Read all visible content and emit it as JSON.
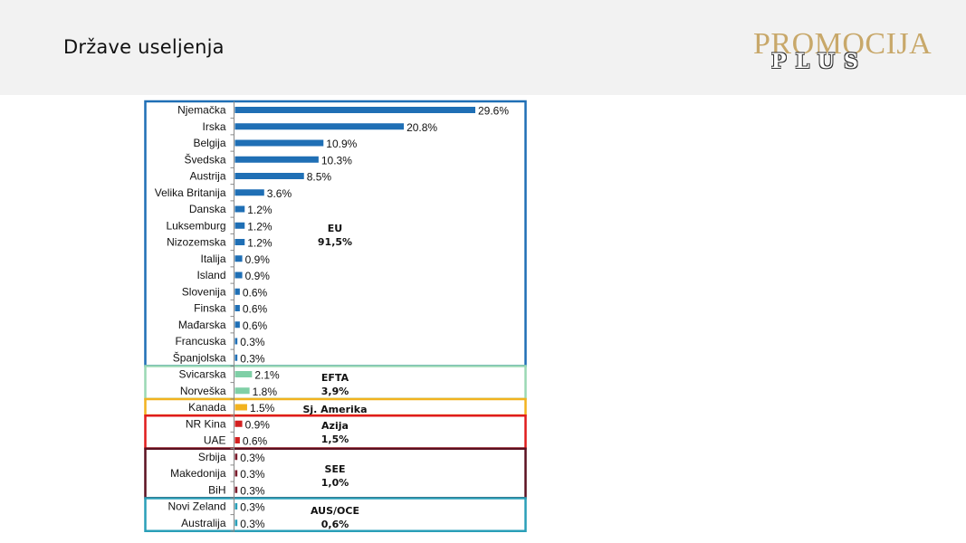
{
  "header": {
    "title": "Države useljenja",
    "logo_main": "PROMOCIJA",
    "logo_sub": "PLUS"
  },
  "chart_data": {
    "type": "bar",
    "orientation": "horizontal",
    "categories": [
      "Njemačka",
      "Irska",
      "Belgija",
      "Švedska",
      "Austrija",
      "Velika Britanija",
      "Danska",
      "Luksemburg",
      "Nizozemska",
      "Italija",
      "Island",
      "Slovenija",
      "Finska",
      "Mađarska",
      "Francuska",
      "Španjolska",
      "Svicarska",
      "Norveška",
      "Kanada",
      "NR Kina",
      "UAE",
      "Srbija",
      "Makedonija",
      "BiH",
      "Novi Zeland",
      "Australija"
    ],
    "values": [
      29.6,
      20.8,
      10.9,
      10.3,
      8.5,
      3.6,
      1.2,
      1.2,
      1.2,
      0.9,
      0.9,
      0.6,
      0.6,
      0.6,
      0.3,
      0.3,
      2.1,
      1.8,
      1.5,
      0.9,
      0.6,
      0.3,
      0.3,
      0.3,
      0.3,
      0.3
    ],
    "value_labels": [
      "29.6%",
      "20.8%",
      "10.9%",
      "10.3%",
      "8.5%",
      "3.6%",
      "1.2%",
      "1.2%",
      "1.2%",
      "0.9%",
      "0.9%",
      "0.6%",
      "0.6%",
      "0.6%",
      "0.3%",
      "0.3%",
      "2.1%",
      "1.8%",
      "1.5%",
      "0.9%",
      "0.6%",
      "0.3%",
      "0.3%",
      "0.3%",
      "0.3%",
      "0.3%"
    ],
    "xlim": [
      0,
      30
    ],
    "groups": [
      {
        "line1": "EU",
        "line2": "91,5%",
        "start": 0,
        "end": 15,
        "color": "#1f6fb5",
        "border": "#1f6fb5"
      },
      {
        "line1": "EFTA",
        "line2": "3,9%",
        "start": 16,
        "end": 17,
        "color": "#7fcfa6",
        "border": "#9ad8b4"
      },
      {
        "line1": "Sj. Amerika",
        "line2": "",
        "start": 18,
        "end": 18,
        "color": "#f2b21e",
        "border": "#f2b21e"
      },
      {
        "line1": "Azija",
        "line2": "1,5%",
        "start": 19,
        "end": 20,
        "color": "#d32020",
        "border": "#e01b1b"
      },
      {
        "line1": "SEE",
        "line2": "1,0%",
        "start": 21,
        "end": 23,
        "color": "#7a1c2c",
        "border": "#5b1020"
      },
      {
        "line1": "AUS/OCE",
        "line2": "0,6%",
        "start": 24,
        "end": 25,
        "color": "#2a9fb8",
        "border": "#2a9fb8"
      }
    ]
  }
}
